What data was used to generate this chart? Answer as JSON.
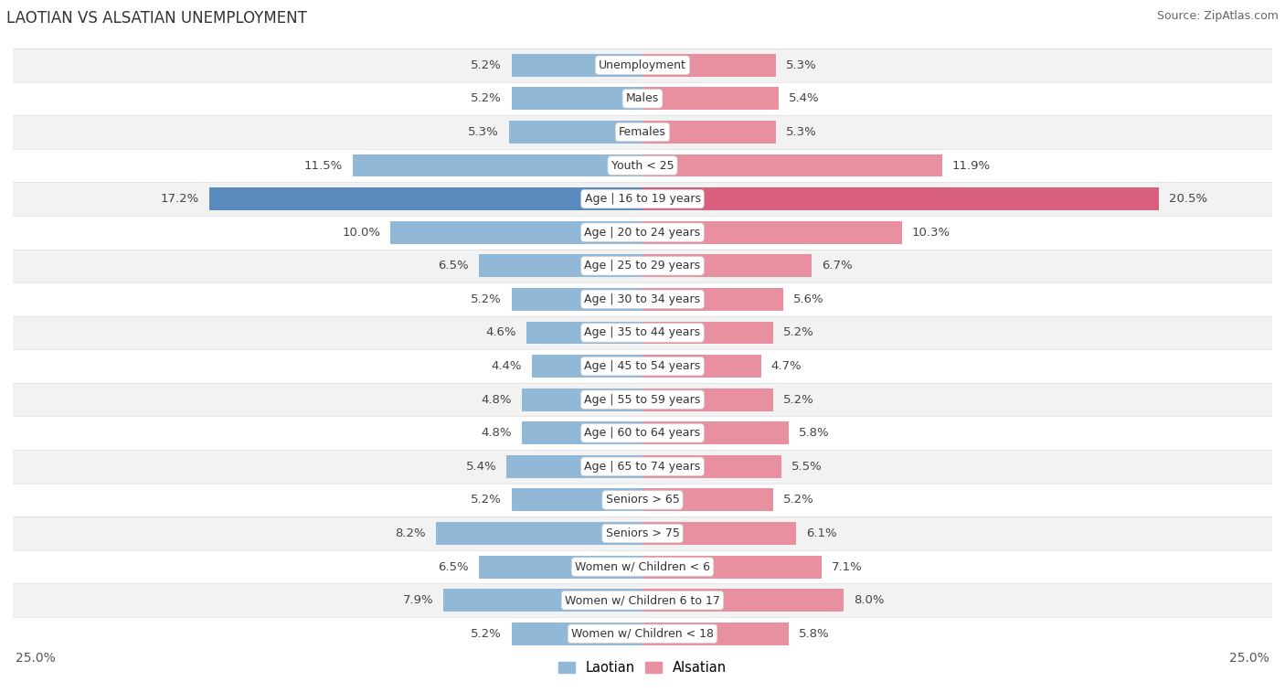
{
  "title": "LAOTIAN VS ALSATIAN UNEMPLOYMENT",
  "source": "Source: ZipAtlas.com",
  "categories": [
    "Unemployment",
    "Males",
    "Females",
    "Youth < 25",
    "Age | 16 to 19 years",
    "Age | 20 to 24 years",
    "Age | 25 to 29 years",
    "Age | 30 to 34 years",
    "Age | 35 to 44 years",
    "Age | 45 to 54 years",
    "Age | 55 to 59 years",
    "Age | 60 to 64 years",
    "Age | 65 to 74 years",
    "Seniors > 65",
    "Seniors > 75",
    "Women w/ Children < 6",
    "Women w/ Children 6 to 17",
    "Women w/ Children < 18"
  ],
  "laotian": [
    5.2,
    5.2,
    5.3,
    11.5,
    17.2,
    10.0,
    6.5,
    5.2,
    4.6,
    4.4,
    4.8,
    4.8,
    5.4,
    5.2,
    8.2,
    6.5,
    7.9,
    5.2
  ],
  "alsatian": [
    5.3,
    5.4,
    5.3,
    11.9,
    20.5,
    10.3,
    6.7,
    5.6,
    5.2,
    4.7,
    5.2,
    5.8,
    5.5,
    5.2,
    6.1,
    7.1,
    8.0,
    5.8
  ],
  "laotian_color": "#92b8d8",
  "alsatian_color": "#e88fa0",
  "highlight_laotian_color": "#5a8bbf",
  "highlight_alsatian_color": "#d95f7e",
  "row_colors": [
    "#f2f2f2",
    "#ffffff"
  ],
  "max_value": 25.0,
  "bar_height": 0.68,
  "label_fontsize": 9.5,
  "title_fontsize": 12,
  "source_fontsize": 9,
  "category_fontsize": 9
}
